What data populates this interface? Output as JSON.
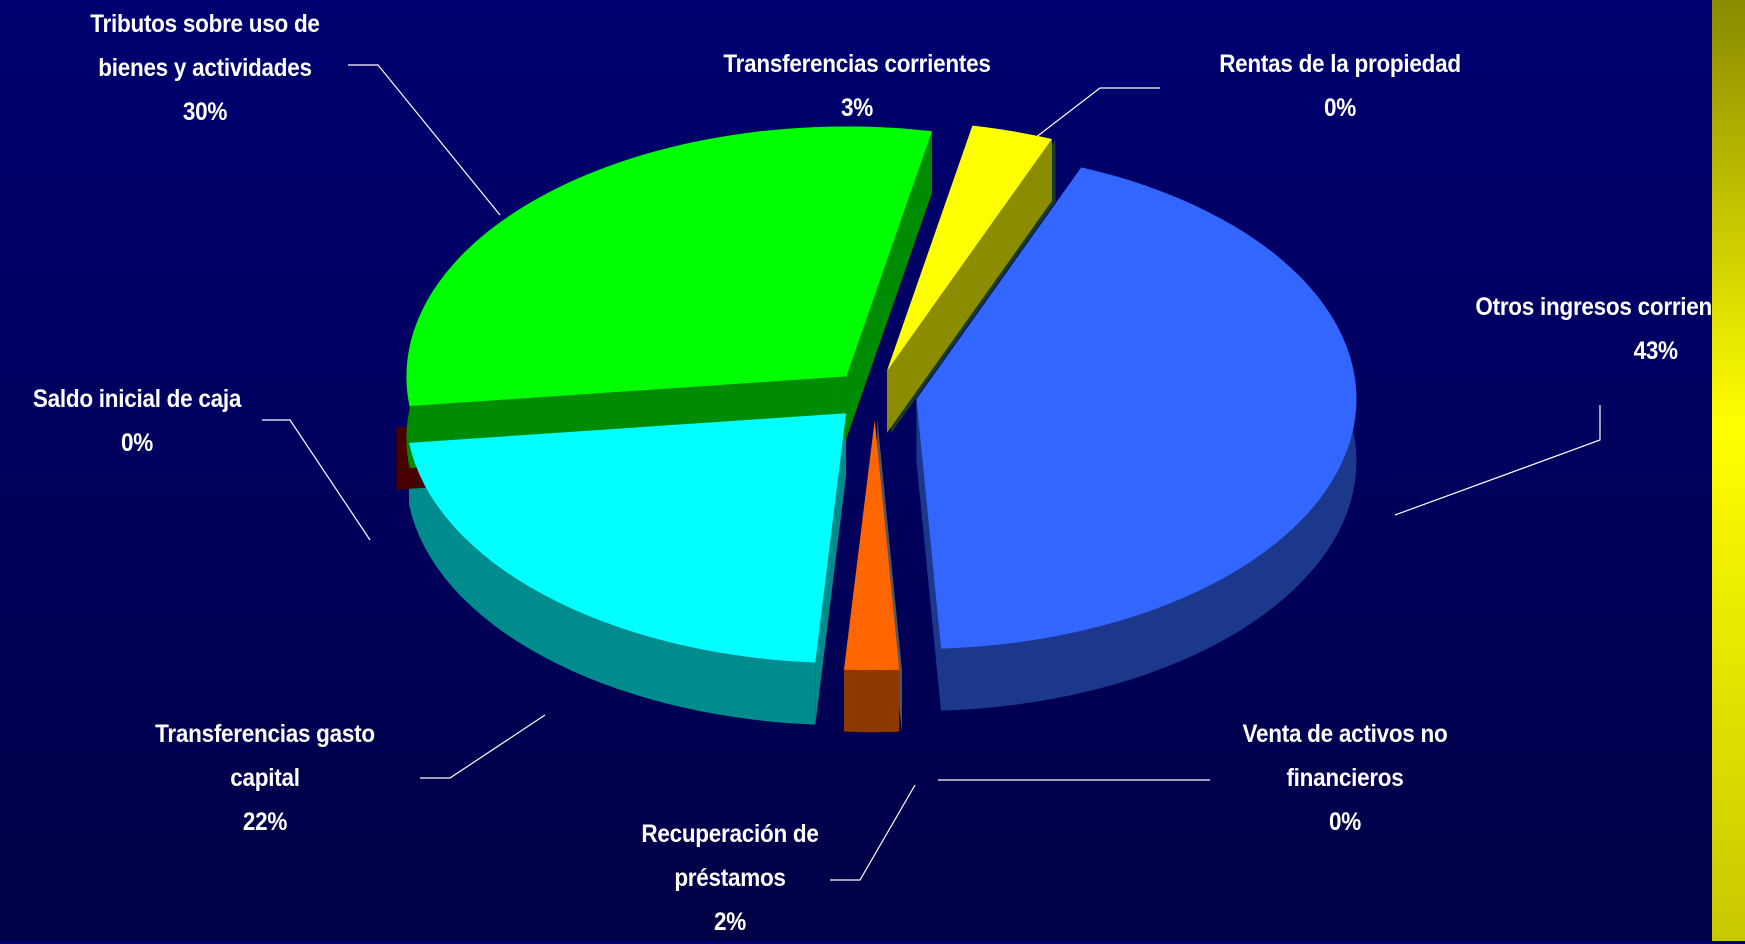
{
  "chart_data": {
    "type": "pie3d",
    "categories": [
      "Rentas de la propiedad",
      "Otros ingresos corrien",
      "Venta de activos no financieros",
      "Recuperación de préstamos",
      "Transferencias gasto capital",
      "Saldo inicial de caja",
      "Tributos sobre uso de bienes y actividades",
      "Transferencias corrientes"
    ],
    "values": [
      0,
      43,
      0,
      2,
      22,
      0,
      30,
      3
    ],
    "value_labels": [
      "0%",
      "43%",
      "0%",
      "2%",
      "22%",
      "0%",
      "30%",
      "3%"
    ],
    "colors": [
      "#2f6b45",
      "#3366ff",
      "#9a9aa6",
      "#ff6600",
      "#00ffff",
      "#800000",
      "#00ff00",
      "#ffff00"
    ]
  }
}
